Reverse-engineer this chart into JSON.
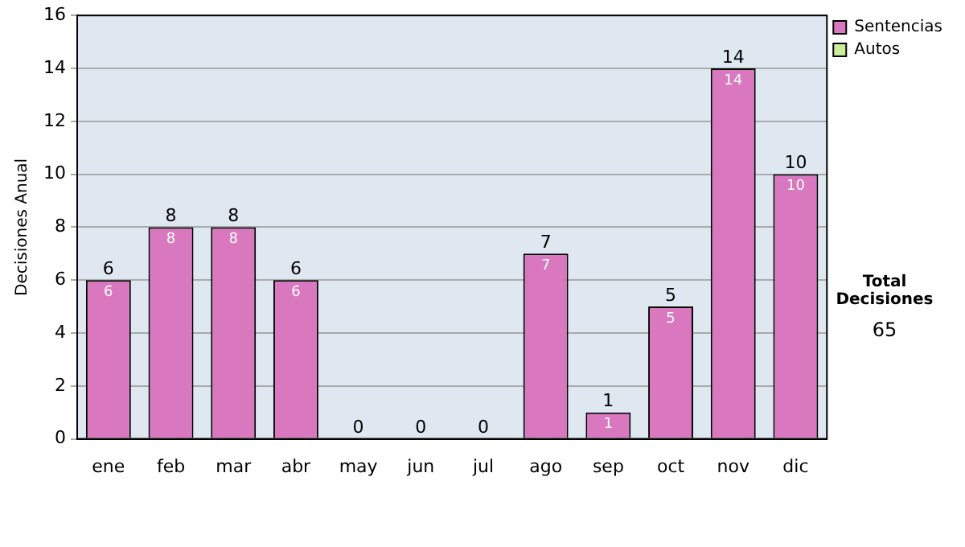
{
  "chart_data": {
    "type": "bar",
    "ylabel": "Decisiones Anual",
    "categories": [
      "ene",
      "feb",
      "mar",
      "abr",
      "may",
      "jun",
      "jul",
      "ago",
      "sep",
      "oct",
      "nov",
      "dic"
    ],
    "series": [
      {
        "name": "Sentencias",
        "color": "#d978bf",
        "values": [
          6,
          8,
          8,
          6,
          0,
          0,
          0,
          7,
          1,
          5,
          14,
          10
        ],
        "value_labels": [
          "6",
          "8",
          "8",
          "6",
          null,
          null,
          null,
          "7",
          "1",
          "5",
          "14",
          "10"
        ]
      },
      {
        "name": "Autos",
        "color": "#ccee99",
        "values": [
          0,
          0,
          0,
          0,
          0,
          0,
          0,
          0,
          0,
          0,
          0,
          0
        ]
      }
    ],
    "stacked": true,
    "totals": [
      "6",
      "8",
      "8",
      "6",
      "0",
      "0",
      "0",
      "7",
      "1",
      "5",
      "14",
      "10"
    ],
    "ylim": [
      0,
      16
    ],
    "yticks": [
      0,
      2,
      4,
      6,
      8,
      10,
      12,
      14,
      16
    ],
    "grid": "y",
    "legend": "top right",
    "annotations": [
      "Total Decisiones",
      "65"
    ]
  }
}
